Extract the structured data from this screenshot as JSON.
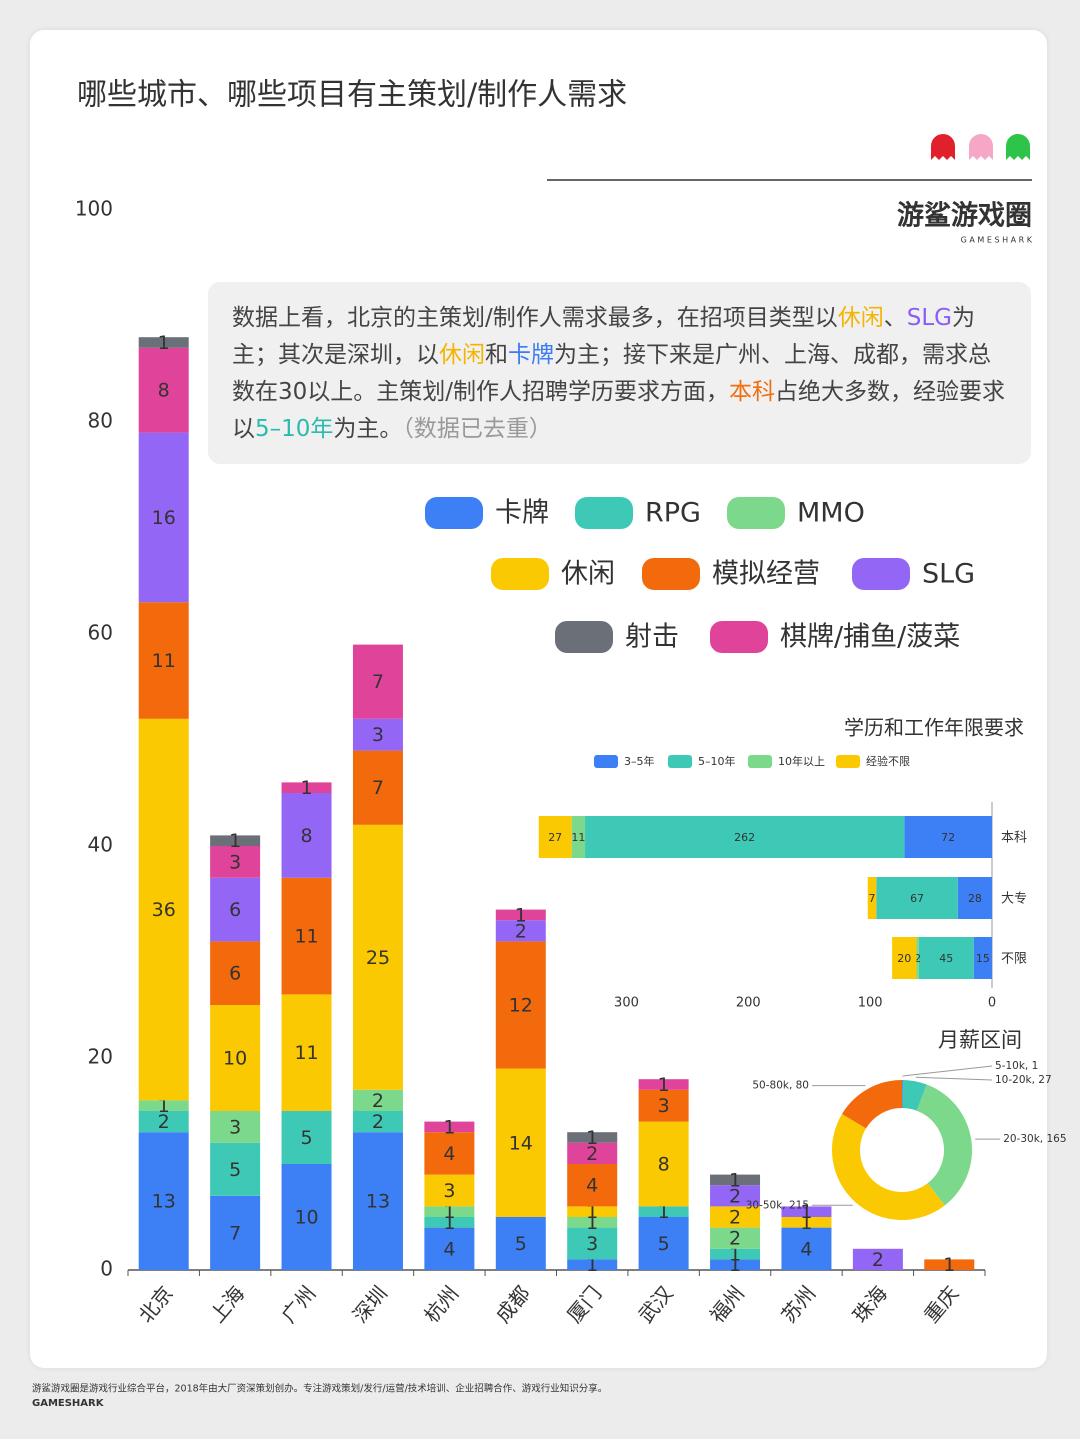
{
  "title": "哪些城市、哪些项目有主策划/制作人需求",
  "branding": {
    "logo": "游鲨游戏圈",
    "logo_sub": "G A M E S H A R K",
    "footer": "游鲨游戏圈是游戏行业综合平台，2018年由大厂资深策划创办。专注游戏策划/发行/运营/技术培训、企业招聘合作、游戏行业知识分享。",
    "footer_brand": "GAMESHARK"
  },
  "annotation": [
    {
      "text": "数据上看，北京的主策划/制作人需求最多，在招项目类型以"
    },
    {
      "text": "休闲",
      "color": "#f5b400"
    },
    {
      "text": "、"
    },
    {
      "text": "SLG",
      "color": "#8b5cf6"
    },
    {
      "text": "为主；其次是深圳，以"
    },
    {
      "text": "休闲",
      "color": "#f5b400"
    },
    {
      "text": "和"
    },
    {
      "text": "卡牌",
      "color": "#3b7cf0"
    },
    {
      "text": "为主；接下来是广州、上海、成都，需求总数在30以上。主策划/制作人招聘学历要求方面，"
    },
    {
      "text": "本科",
      "color": "#f07010"
    },
    {
      "text": "占绝大多数，经验要求以"
    },
    {
      "text": "5–10年",
      "color": "#2bbbad"
    },
    {
      "text": "为主。"
    },
    {
      "text": "（数据已去重）",
      "color": "#999999"
    }
  ],
  "chart_data": [
    {
      "type": "bar",
      "stacked": true,
      "categories": [
        "北京",
        "上海",
        "广州",
        "深圳",
        "杭州",
        "成都",
        "厦门",
        "武汉",
        "福州",
        "苏州",
        "珠海",
        "重庆"
      ],
      "series": [
        {
          "name": "卡牌",
          "color": "#3d7ff5",
          "values": [
            13,
            7,
            10,
            13,
            4,
            5,
            1,
            5,
            1,
            4,
            0,
            0
          ]
        },
        {
          "name": "RPG",
          "color": "#3ec9b6",
          "values": [
            2,
            5,
            5,
            2,
            1,
            0,
            3,
            1,
            1,
            0,
            0,
            0
          ]
        },
        {
          "name": "MMO",
          "color": "#7cd88a",
          "values": [
            1,
            3,
            0,
            2,
            1,
            0,
            1,
            0,
            2,
            0,
            0,
            0
          ]
        },
        {
          "name": "休闲",
          "color": "#fbc901",
          "values": [
            36,
            10,
            11,
            25,
            3,
            14,
            1,
            8,
            2,
            1,
            0,
            0
          ]
        },
        {
          "name": "模拟经营",
          "color": "#f26a0c",
          "values": [
            11,
            6,
            11,
            7,
            4,
            12,
            4,
            3,
            0,
            0,
            0,
            1
          ]
        },
        {
          "name": "SLG",
          "color": "#9466f6",
          "values": [
            16,
            6,
            8,
            3,
            0,
            2,
            0,
            0,
            2,
            1,
            2,
            0
          ]
        },
        {
          "name": "射击",
          "color": "#6b6f78",
          "values": [
            1,
            1,
            0,
            0,
            0,
            0,
            1,
            0,
            1,
            0,
            0,
            0
          ]
        },
        {
          "name": "棋牌/捕鱼/菠菜",
          "color": "#e0449a",
          "values": [
            8,
            3,
            1,
            7,
            1,
            1,
            2,
            1,
            0,
            0,
            0,
            0
          ]
        }
      ],
      "ylim": [
        0,
        100
      ],
      "yticks": [
        0,
        20,
        40,
        60,
        80,
        100
      ]
    },
    {
      "type": "hbar",
      "stacked": true,
      "title": "学历和工作年限要求",
      "x_reversed": true,
      "categories": [
        "本科",
        "大专",
        "不限"
      ],
      "series": [
        {
          "name": "3–5年",
          "color": "#3d7ff5",
          "values": [
            72,
            28,
            15
          ]
        },
        {
          "name": "5–10年",
          "color": "#3ec9b6",
          "values": [
            262,
            67,
            45
          ]
        },
        {
          "name": "10年以上",
          "color": "#7cd88a",
          "values": [
            11,
            0,
            2
          ]
        },
        {
          "name": "经验不限",
          "color": "#fbc901",
          "values": [
            27,
            7,
            20
          ]
        }
      ],
      "xlim": [
        0,
        380
      ],
      "xticks": [
        0,
        100,
        200,
        300
      ]
    },
    {
      "type": "donut",
      "title": "月薪区间",
      "categories": [
        "5-10k",
        "10-20k",
        "20-30k",
        "30-50k",
        "50-80k"
      ],
      "values": [
        1,
        27,
        165,
        215,
        80
      ],
      "value_labels": [
        "5-10k, 1",
        "10-20k, 27",
        "20-30k, 165",
        "30-50k, 215",
        "50-80k, 80"
      ],
      "colors": [
        "#3d7ff5",
        "#3ec9b6",
        "#7cd88a",
        "#fbc901",
        "#f26a0c"
      ]
    }
  ]
}
